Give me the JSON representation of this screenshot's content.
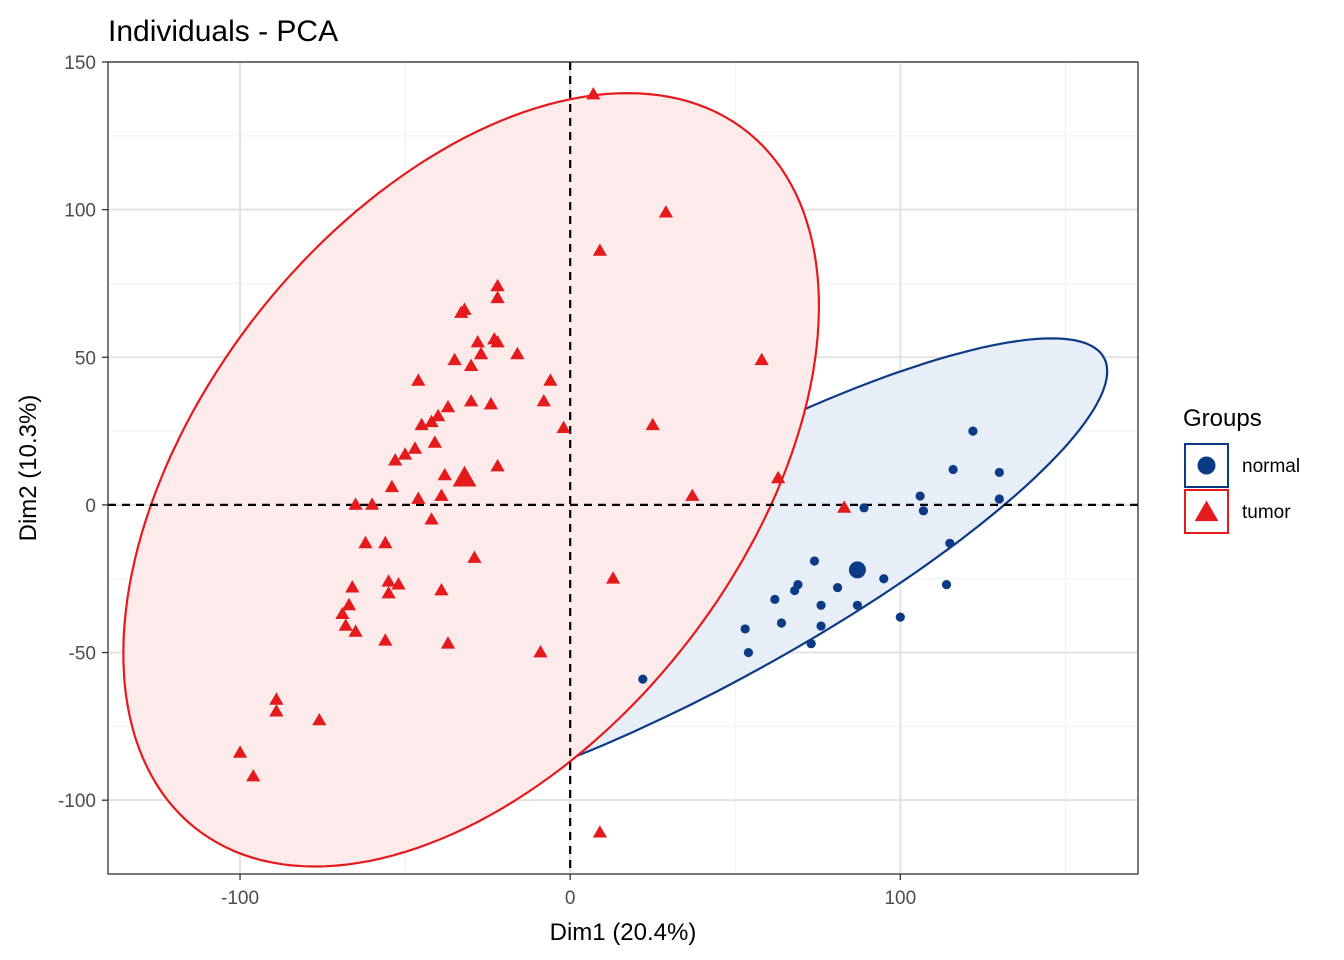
{
  "chart_data": {
    "type": "scatter",
    "title": "Individuals - PCA",
    "xlabel": "Dim1 (20.4%)",
    "ylabel": "Dim2 (10.3%)",
    "xlim": [
      -140,
      172
    ],
    "ylim": [
      -125,
      150
    ],
    "x_ticks": [
      -100,
      0,
      100
    ],
    "y_ticks": [
      150,
      100,
      50,
      0,
      -50,
      -100
    ],
    "x_tick_labels": [
      "-100",
      "0",
      "100"
    ],
    "y_tick_labels": [
      "150",
      "100",
      "50",
      "0",
      "-50",
      "-100"
    ],
    "grid": true,
    "reference_lines": {
      "x": 0,
      "y": 0,
      "style": "dashed"
    },
    "legend": {
      "title": "Groups",
      "position": "right",
      "entries": [
        {
          "label": "normal",
          "shape": "circle",
          "color": "#0b3b85"
        },
        {
          "label": "tumor",
          "shape": "triangle",
          "color": "#e41a1c"
        }
      ]
    },
    "series": [
      {
        "name": "normal",
        "color": "#0b3b85",
        "fill": "#e8eef8",
        "shape": "circle",
        "centroid": [
          87,
          -22
        ],
        "ellipse": {
          "center": [
            42.5,
            -23.5
          ],
          "semi_major": 140,
          "semi_minor": 35,
          "angle_deg": 32
        },
        "points": [
          [
            22,
            -59
          ],
          [
            53,
            -42
          ],
          [
            54,
            -50
          ],
          [
            64,
            -40
          ],
          [
            62,
            -32
          ],
          [
            68,
            -29
          ],
          [
            69,
            -27
          ],
          [
            73,
            -47
          ],
          [
            74,
            -19
          ],
          [
            76,
            -34
          ],
          [
            76,
            -41
          ],
          [
            81,
            -28
          ],
          [
            87,
            -34
          ],
          [
            89,
            -1
          ],
          [
            95,
            -25
          ],
          [
            100,
            -38
          ],
          [
            106,
            3
          ],
          [
            107,
            -2
          ],
          [
            114,
            -27
          ],
          [
            115,
            -13
          ],
          [
            116,
            12
          ],
          [
            122,
            25
          ],
          [
            130,
            2
          ],
          [
            130,
            11
          ]
        ]
      },
      {
        "name": "tumor",
        "color": "#e41a1c",
        "fill": "#fdebeb",
        "shape": "triangle",
        "centroid": [
          -32,
          9
        ],
        "ellipse": {
          "center": [
            -30,
            8.5
          ],
          "semi_major": 145,
          "semi_minor": 85,
          "angle_deg": 58
        },
        "points": [
          [
            7,
            139
          ],
          [
            29,
            99
          ],
          [
            9,
            86
          ],
          [
            -22,
            74
          ],
          [
            -22,
            70
          ],
          [
            -33,
            65
          ],
          [
            -32,
            66
          ],
          [
            -23,
            56
          ],
          [
            -22,
            55
          ],
          [
            -28,
            55
          ],
          [
            -27,
            51
          ],
          [
            -16,
            51
          ],
          [
            -30,
            47
          ],
          [
            -35,
            49
          ],
          [
            -6,
            42
          ],
          [
            -46,
            42
          ],
          [
            -8,
            35
          ],
          [
            -24,
            34
          ],
          [
            -30,
            35
          ],
          [
            -37,
            33
          ],
          [
            -40,
            30
          ],
          [
            -42,
            28
          ],
          [
            -45,
            27
          ],
          [
            -41,
            21
          ],
          [
            -47,
            19
          ],
          [
            -50,
            17
          ],
          [
            -53,
            15
          ],
          [
            -2,
            26
          ],
          [
            25,
            27
          ],
          [
            -22,
            13
          ],
          [
            -38,
            10
          ],
          [
            -31,
            8
          ],
          [
            -54,
            6
          ],
          [
            -46,
            2
          ],
          [
            -39,
            3
          ],
          [
            -60,
            0
          ],
          [
            -65,
            0
          ],
          [
            -62,
            -13
          ],
          [
            -56,
            -13
          ],
          [
            -42,
            -5
          ],
          [
            -29,
            -18
          ],
          [
            37,
            3
          ],
          [
            63,
            9
          ],
          [
            83,
            -1
          ],
          [
            13,
            -25
          ],
          [
            -39,
            -29
          ],
          [
            -52,
            -27
          ],
          [
            -55,
            -26
          ],
          [
            -55,
            -30
          ],
          [
            -66,
            -28
          ],
          [
            -67,
            -34
          ],
          [
            -69,
            -37
          ],
          [
            -68,
            -41
          ],
          [
            -65,
            -43
          ],
          [
            -56,
            -46
          ],
          [
            -37,
            -47
          ],
          [
            -9,
            -50
          ],
          [
            -89,
            -66
          ],
          [
            -89,
            -70
          ],
          [
            -76,
            -73
          ],
          [
            -100,
            -84
          ],
          [
            -96,
            -92
          ],
          [
            9,
            -111
          ],
          [
            58,
            49
          ]
        ]
      }
    ]
  }
}
